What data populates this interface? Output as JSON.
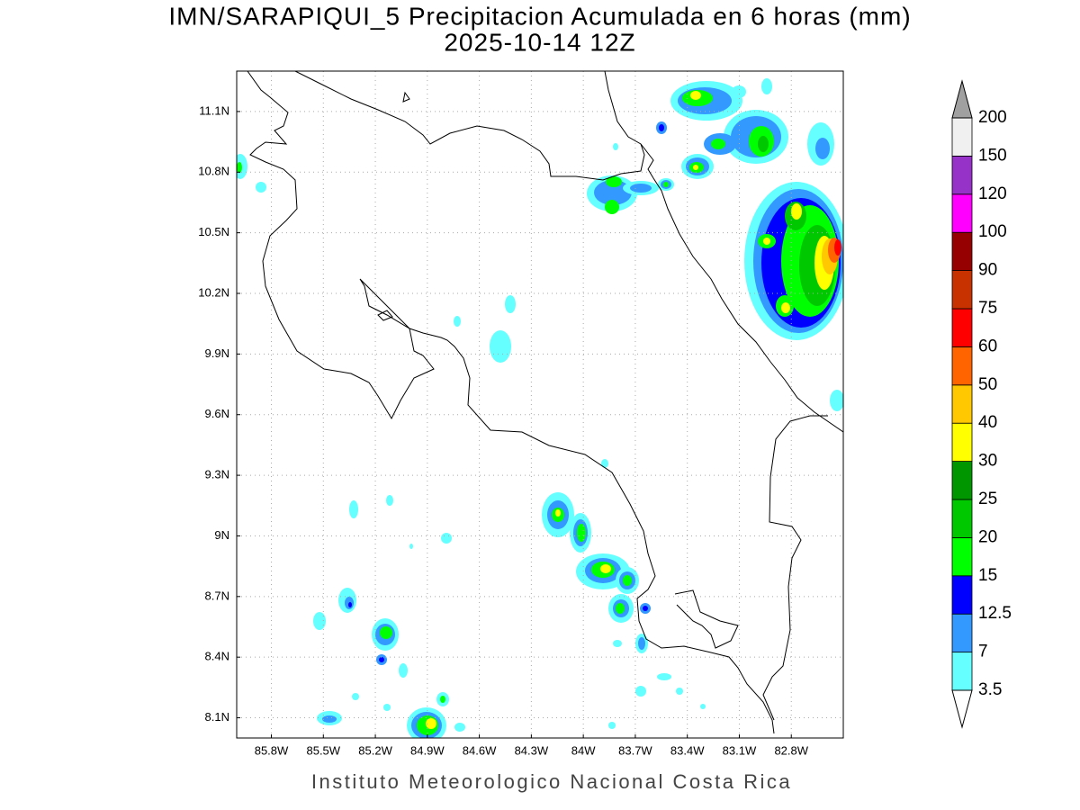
{
  "title": "IMN/SARAPIQUI_5 Precipitacion Acumulada en 6 horas (mm)",
  "subtitle": "2025-10-14 12Z",
  "footer": "Instituto Meteorologico Nacional Costa Rica",
  "map": {
    "lonlim": [
      -86.0,
      -82.5
    ],
    "latlim": [
      8.0,
      11.3
    ],
    "grid": true,
    "lon_ticks": [
      {
        "value": -85.8,
        "label": "85.8W"
      },
      {
        "value": -85.5,
        "label": "85.5W"
      },
      {
        "value": -85.2,
        "label": "85.2W"
      },
      {
        "value": -84.9,
        "label": "84.9W"
      },
      {
        "value": -84.6,
        "label": "84.6W"
      },
      {
        "value": -84.3,
        "label": "84.3W"
      },
      {
        "value": -84.0,
        "label": "84W"
      },
      {
        "value": -83.7,
        "label": "83.7W"
      },
      {
        "value": -83.4,
        "label": "83.4W"
      },
      {
        "value": -83.1,
        "label": "83.1W"
      },
      {
        "value": -82.8,
        "label": "82.8W"
      }
    ],
    "lat_ticks": [
      {
        "value": 11.1,
        "label": "11.1N"
      },
      {
        "value": 10.8,
        "label": "10.8N"
      },
      {
        "value": 10.5,
        "label": "10.5N"
      },
      {
        "value": 10.2,
        "label": "10.2N"
      },
      {
        "value": 9.9,
        "label": "9.9N"
      },
      {
        "value": 9.6,
        "label": "9.6N"
      },
      {
        "value": 9.3,
        "label": "9.3N"
      },
      {
        "value": 9.0,
        "label": "9N"
      },
      {
        "value": 8.7,
        "label": "8.7N"
      },
      {
        "value": 8.4,
        "label": "8.4N"
      },
      {
        "value": 8.1,
        "label": "8.1N"
      }
    ]
  },
  "colorbar": {
    "levels": [
      3.5,
      7,
      12.5,
      15,
      20,
      25,
      30,
      40,
      50,
      60,
      75,
      90,
      100,
      120,
      150,
      200
    ],
    "colors": [
      "#66ffff",
      "#3399ff",
      "#0000ff",
      "#00ff00",
      "#00c800",
      "#009600",
      "#ffff00",
      "#ffc800",
      "#ff6400",
      "#ff0000",
      "#c83200",
      "#960000",
      "#ff00ff",
      "#9632c8",
      "#f0f0f0"
    ],
    "under_color": "#ffffff",
    "over_color": "#a0a0a0"
  }
}
